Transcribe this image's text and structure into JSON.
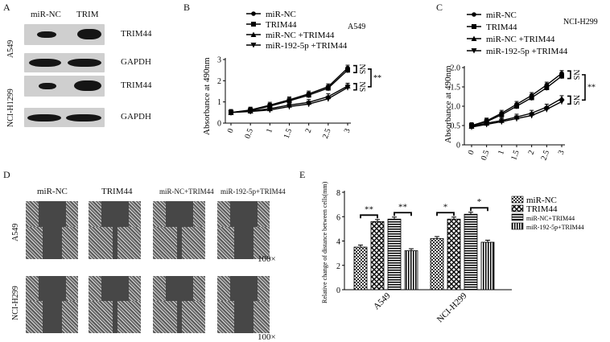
{
  "panels": {
    "a": "A",
    "b": "B",
    "c": "C",
    "d": "D",
    "e": "E"
  },
  "panel_a": {
    "columns": [
      "miR-NC",
      "TRIM"
    ],
    "cell_lines": [
      "A549",
      "NCI-H1299"
    ],
    "bands": [
      "TRIM44",
      "GAPDH",
      "TRIM44",
      "GAPDH"
    ]
  },
  "panel_d": {
    "columns": [
      "miR-NC",
      "TRIM44",
      "miR-NC+TRIM44",
      "miR-192-5p+TRIM44"
    ],
    "cell_lines": [
      "A549",
      "NCI-H299"
    ],
    "magnification": [
      "100×",
      "100×"
    ]
  },
  "chart_data": [
    {
      "type": "line",
      "panel": "B",
      "annotation": "A549",
      "ylabel": "Absorbance at 490nm",
      "x": [
        0,
        0.5,
        1,
        1.5,
        2,
        2.5,
        3
      ],
      "xticks": [
        "0",
        "0.5",
        "1",
        "1.5",
        "2",
        "2.5",
        "3"
      ],
      "ylim": [
        0,
        3
      ],
      "yticks": [
        "0",
        "1",
        "2",
        "3"
      ],
      "series": [
        {
          "name": "miR-NC",
          "values": [
            0.5,
            0.62,
            0.85,
            1.1,
            1.38,
            1.72,
            2.6
          ]
        },
        {
          "name": "TRIM44",
          "values": [
            0.5,
            0.6,
            0.8,
            1.05,
            1.32,
            1.65,
            2.5
          ]
        },
        {
          "name": "miR-NC +TRIM44",
          "values": [
            0.5,
            0.57,
            0.68,
            0.85,
            0.98,
            1.25,
            1.75
          ]
        },
        {
          "name": "miR-192-5p +TRIM44",
          "values": [
            0.5,
            0.55,
            0.62,
            0.78,
            0.9,
            1.15,
            1.68
          ]
        }
      ],
      "sig": [
        "NS",
        "NS",
        "**"
      ]
    },
    {
      "type": "line",
      "panel": "C",
      "annotation": "NCI-H299",
      "ylabel": "Absorbance at 490nm",
      "x": [
        0,
        0.5,
        1,
        1.5,
        2,
        2.5,
        3
      ],
      "xticks": [
        "0",
        "0.5",
        "1",
        "1.5",
        "2",
        "2.5",
        "3"
      ],
      "ylim": [
        0,
        2.0
      ],
      "yticks": [
        "0",
        "0.5",
        "1.0",
        "1.5",
        "2.0"
      ],
      "series": [
        {
          "name": "miR-NC",
          "values": [
            0.5,
            0.62,
            0.82,
            1.05,
            1.28,
            1.55,
            1.85
          ]
        },
        {
          "name": "TRIM44",
          "values": [
            0.5,
            0.6,
            0.78,
            1.0,
            1.22,
            1.48,
            1.78
          ]
        },
        {
          "name": "miR-NC +TRIM44",
          "values": [
            0.48,
            0.56,
            0.63,
            0.72,
            0.82,
            0.98,
            1.2
          ]
        },
        {
          "name": "miR-192-5p +TRIM44",
          "values": [
            0.46,
            0.53,
            0.6,
            0.68,
            0.76,
            0.92,
            1.12
          ]
        }
      ],
      "sig": [
        "NS",
        "NS",
        "**"
      ]
    },
    {
      "type": "bar",
      "panel": "E",
      "ylabel": "Relative change of distance between cells(mm)",
      "categories": [
        "A549",
        "NCI-H299"
      ],
      "ylim": [
        0,
        8
      ],
      "yticks": [
        "0",
        "2",
        "4",
        "6",
        "8"
      ],
      "series": [
        {
          "name": "miR-NC",
          "values": [
            3.5,
            4.2
          ]
        },
        {
          "name": "TRIM44",
          "values": [
            5.6,
            5.8
          ]
        },
        {
          "name": "miR-NC+TRIM44",
          "values": [
            5.8,
            6.2
          ]
        },
        {
          "name": "miR-192-5p+TRIM44",
          "values": [
            3.2,
            3.9
          ]
        }
      ],
      "sig": [
        "**",
        "**",
        "*",
        "*"
      ]
    }
  ]
}
